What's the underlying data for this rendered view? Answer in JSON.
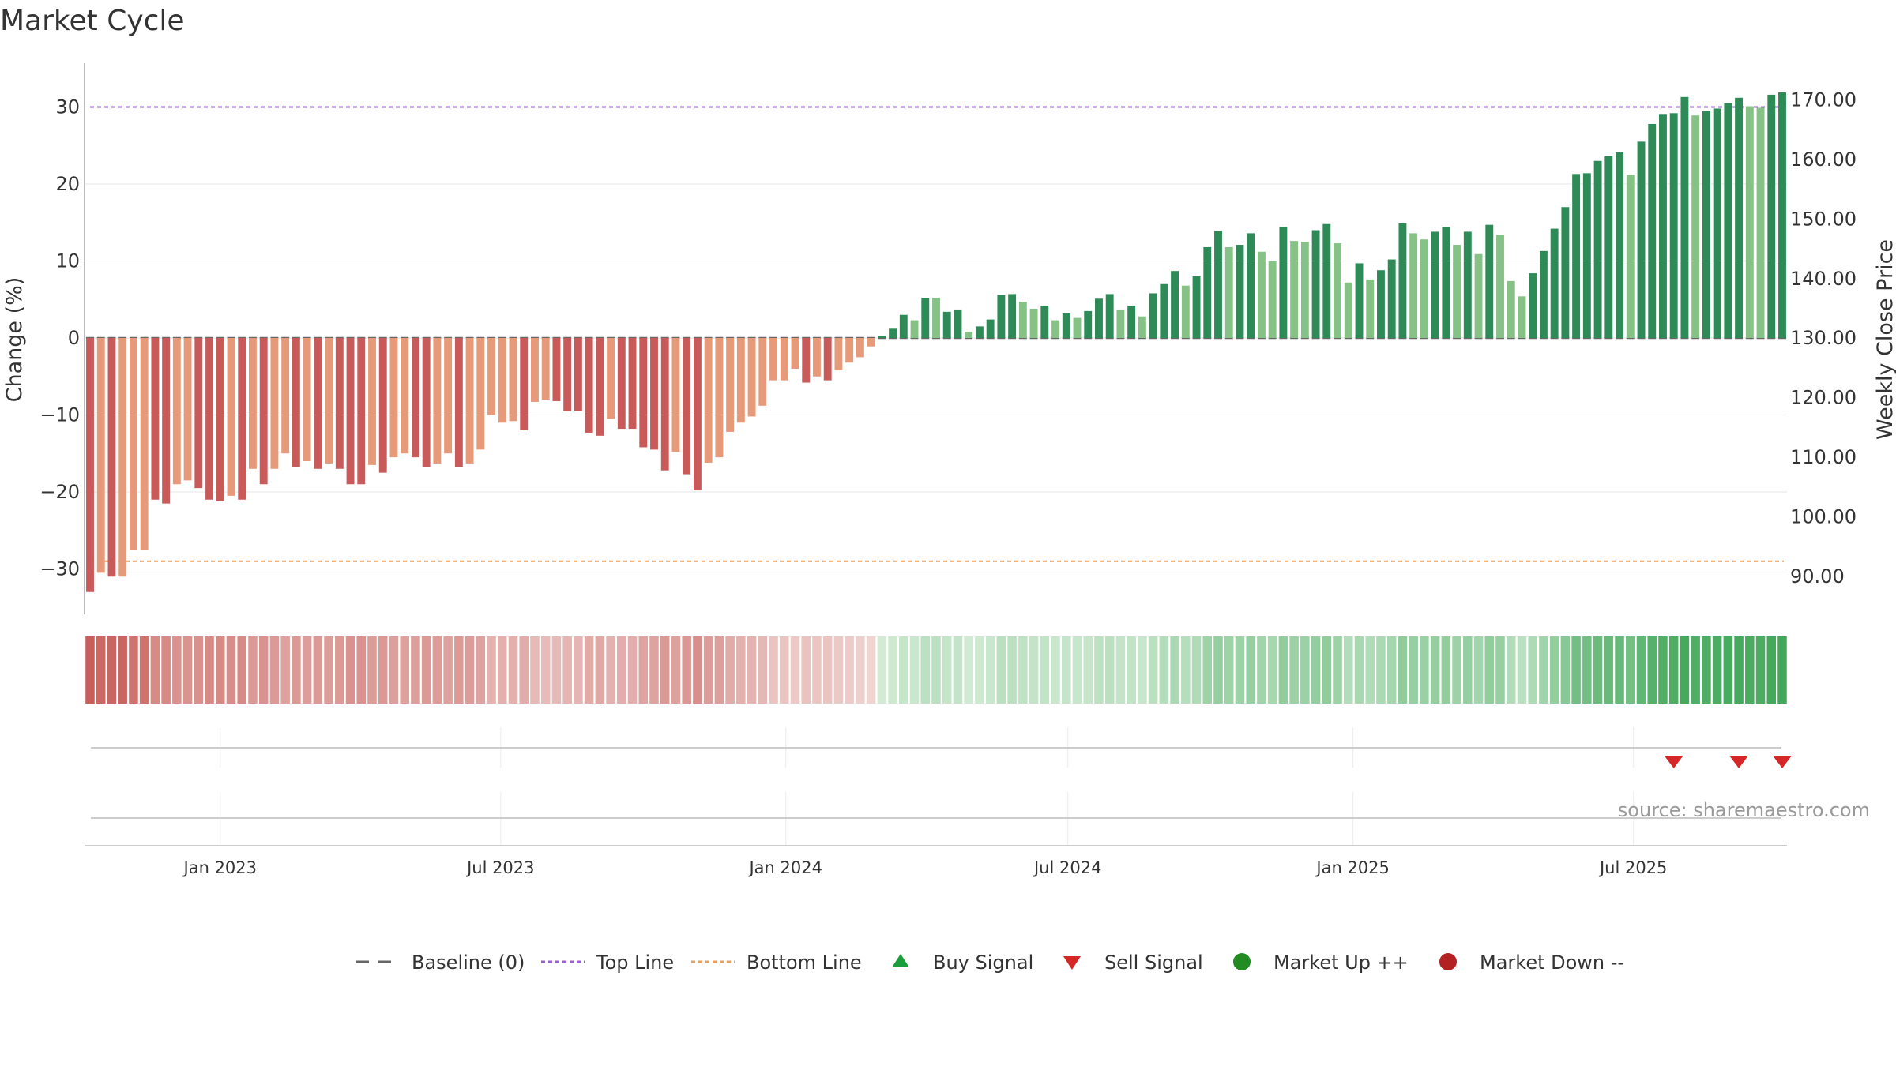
{
  "title": "Market Cycle",
  "source": "source: sharemaestro.com",
  "colors": {
    "down_strong": "#c85a5a",
    "down_light": "#e69a7a",
    "up_strong": "#2e8b57",
    "up_light": "#86c186",
    "top_line": "#9a5fd0",
    "bottom_line": "#e8a060",
    "baseline": "#666666",
    "buy": "#1a9e3c",
    "sell": "#d62728",
    "market_up": "#228b22",
    "market_down": "#b22222"
  },
  "chart_data": {
    "type": "bar",
    "title": "Market Cycle",
    "ylabel_left": "Change (%)",
    "ylabel_right": "Weekly Close Price",
    "ylim_left": [
      -35,
      35
    ],
    "ylim_right": [
      83.6,
      176.2
    ],
    "yticks_left": [
      "30",
      "20",
      "10",
      "0",
      "−10",
      "−20",
      "−30"
    ],
    "yticks_right": [
      "170.00",
      "160.00",
      "150.00",
      "140.00",
      "130.00",
      "120.00",
      "110.00",
      "100.00",
      "90.00"
    ],
    "x_start": "2022-10-09",
    "interval": "weekly",
    "xticks": [
      "Jan 2023",
      "Jul 2023",
      "Jan 2024",
      "Jul 2024",
      "Jan 2025",
      "Jul 2025"
    ],
    "top_line": 30,
    "bottom_line": -29,
    "values": [
      -33,
      -30.5,
      -31,
      -31,
      -27.5,
      -27.5,
      -21,
      -21.5,
      -19,
      -18.5,
      -19.5,
      -21,
      -21.2,
      -20.5,
      -21,
      -17,
      -19,
      -17,
      -15,
      -16.8,
      -16,
      -17,
      -16.3,
      -17,
      -19,
      -19,
      -16.5,
      -17.5,
      -15.5,
      -15,
      -15.5,
      -16.8,
      -16.3,
      -15,
      -16.8,
      -16.3,
      -14.5,
      -10,
      -11,
      -10.8,
      -12,
      -8.3,
      -8,
      -8.2,
      -9.5,
      -9.5,
      -12.3,
      -12.7,
      -10.5,
      -11.8,
      -11.8,
      -14.2,
      -14.5,
      -17.2,
      -14.8,
      -17.7,
      -19.8,
      -16.2,
      -15.5,
      -12.2,
      -11,
      -10.2,
      -8.8,
      -5.5,
      -5.5,
      -4,
      -5.8,
      -5,
      -5.5,
      -4.2,
      -3.2,
      -2.5,
      -1.1,
      0.3,
      1.2,
      3,
      2.3,
      5.2,
      5.2,
      3.4,
      3.7,
      0.8,
      1.5,
      2.4,
      5.6,
      5.7,
      4.7,
      3.8,
      4.2,
      2.3,
      3.2,
      2.6,
      3.5,
      5.1,
      5.7,
      3.7,
      4.2,
      2.8,
      5.8,
      7,
      8.7,
      6.8,
      8,
      11.8,
      13.9,
      11.8,
      12.1,
      13.6,
      11.2,
      10,
      14.4,
      12.6,
      12.5,
      14,
      14.8,
      12.3,
      7.2,
      9.7,
      7.6,
      8.8,
      10.2,
      14.9,
      13.6,
      12.8,
      13.8,
      14.4,
      12.1,
      13.8,
      10.9,
      14.7,
      13.4,
      7.4,
      5.4,
      8.4,
      11.3,
      14.2,
      17,
      21.3,
      21.4,
      23,
      23.6,
      24.1,
      21.2,
      25.5,
      27.8,
      29,
      29.2,
      31.3,
      28.9,
      29.5,
      29.8,
      30.5,
      31.2,
      30.1,
      29.9,
      31.6,
      31.9
    ],
    "strength": [
      2,
      1,
      2,
      1,
      1,
      1,
      2,
      2,
      1,
      1,
      2,
      2,
      2,
      1,
      2,
      1,
      2,
      1,
      1,
      2,
      1,
      2,
      1,
      2,
      2,
      2,
      1,
      2,
      1,
      1,
      2,
      2,
      1,
      1,
      2,
      1,
      1,
      1,
      1,
      1,
      2,
      1,
      1,
      2,
      2,
      2,
      2,
      2,
      1,
      2,
      2,
      2,
      2,
      2,
      1,
      2,
      2,
      1,
      1,
      1,
      1,
      1,
      1,
      1,
      1,
      1,
      2,
      1,
      2,
      1,
      1,
      1,
      1,
      2,
      2,
      2,
      1,
      2,
      1,
      2,
      2,
      1,
      2,
      2,
      2,
      2,
      1,
      1,
      2,
      1,
      2,
      1,
      2,
      2,
      2,
      1,
      2,
      1,
      2,
      2,
      2,
      1,
      2,
      2,
      2,
      1,
      2,
      2,
      1,
      1,
      2,
      1,
      1,
      2,
      2,
      1,
      1,
      2,
      1,
      2,
      2,
      2,
      1,
      1,
      2,
      2,
      1,
      2,
      1,
      2,
      1,
      1,
      1,
      2,
      2,
      2,
      2,
      2,
      2,
      2,
      2,
      2,
      1,
      2,
      2,
      2,
      2,
      2,
      1,
      2,
      2,
      2,
      2,
      1,
      1,
      2,
      2
    ],
    "sell_signals": [
      "2025-07-27",
      "2025-09-07",
      "2025-10-05"
    ],
    "buy_signals": [],
    "legend_position": "bottom",
    "legend": [
      "Baseline (0)",
      "Top Line",
      "Bottom Line",
      "Buy Signal",
      "Sell Signal",
      "Market Up ++",
      "Market Down --"
    ]
  }
}
